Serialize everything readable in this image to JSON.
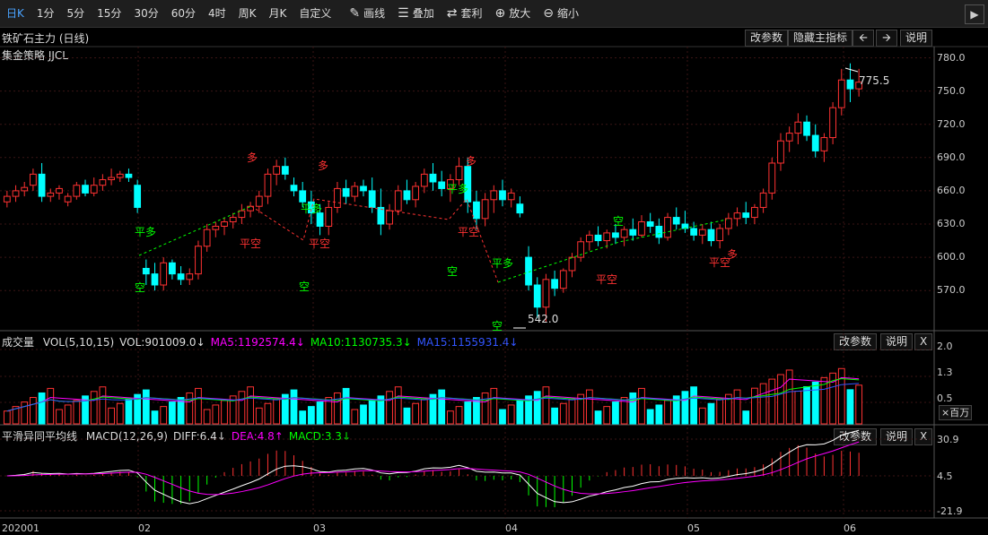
{
  "toolbar": {
    "periods": [
      "日K",
      "1分",
      "5分",
      "15分",
      "30分",
      "60分",
      "4时",
      "周K",
      "月K",
      "自定义"
    ],
    "tools": [
      {
        "label": "画线",
        "icon": "pencil-icon"
      },
      {
        "label": "叠加",
        "icon": "layers-icon"
      },
      {
        "label": "套利",
        "icon": "arbitrage-icon"
      },
      {
        "label": "放大",
        "icon": "zoom-in-icon"
      },
      {
        "label": "缩小",
        "icon": "zoom-out-icon"
      }
    ],
    "expand_icon": "chevron-right-icon"
  },
  "main": {
    "title": "铁矿石主力 (日线)",
    "indicator": "集金策略 JJCL",
    "buttons": {
      "params": "改参数",
      "hide": "隐藏主指标",
      "explain": "说明"
    },
    "price_ticks": [
      "780.0",
      "750.0",
      "720.0",
      "690.0",
      "660.0",
      "630.0",
      "600.0",
      "570.0"
    ],
    "high_label": "775.5",
    "low_label": "542.0"
  },
  "volume": {
    "title": "成交量",
    "legend": [
      {
        "text": "VOL(5,10,15)",
        "color": "#dddddd"
      },
      {
        "text": "VOL:901009.0↓",
        "color": "#dddddd"
      },
      {
        "text": "MA5:1192574.4↓",
        "color": "#ff00ff"
      },
      {
        "text": "MA10:1130735.3↓",
        "color": "#00ff00"
      },
      {
        "text": "MA15:1155931.4↓",
        "color": "#3355ff"
      }
    ],
    "buttons": {
      "params": "改参数",
      "explain": "说明",
      "close": "X"
    },
    "ticks": [
      "2.0",
      "1.3",
      "0.5"
    ],
    "unit": "×百万"
  },
  "macd": {
    "title": "平滑异同平均线",
    "legend": [
      {
        "text": "MACD(12,26,9)",
        "color": "#dddddd"
      },
      {
        "text": "DIFF:6.4↓",
        "color": "#dddddd"
      },
      {
        "text": "DEA:4.8↑",
        "color": "#ff00ff"
      },
      {
        "text": "MACD:3.3↓",
        "color": "#00ff00"
      }
    ],
    "buttons": {
      "params": "改参数",
      "explain": "说明",
      "close": "X"
    },
    "ticks": [
      "30.9",
      "4.5",
      "-21.9"
    ]
  },
  "dates": [
    "202001",
    "02",
    "03",
    "04",
    "05",
    "06"
  ],
  "signal_texts": {
    "ping_duo": "平多",
    "ping_kong": "平空",
    "duo": "多",
    "kong": "空"
  },
  "chart_data": {
    "type": "candlestick",
    "title": "铁矿石主力 (日线)",
    "ylim": [
      542,
      780
    ],
    "y_ticks": [
      570,
      600,
      630,
      660,
      690,
      720,
      750,
      780
    ],
    "candles": [
      [
        650,
        660,
        645,
        655
      ],
      [
        655,
        665,
        650,
        660
      ],
      [
        660,
        668,
        655,
        663
      ],
      [
        665,
        680,
        660,
        675
      ],
      [
        675,
        685,
        650,
        655
      ],
      [
        655,
        662,
        650,
        658
      ],
      [
        658,
        665,
        652,
        662
      ],
      [
        650,
        658,
        646,
        655
      ],
      [
        655,
        668,
        652,
        665
      ],
      [
        665,
        670,
        655,
        658
      ],
      [
        658,
        672,
        655,
        665
      ],
      [
        665,
        675,
        660,
        670
      ],
      [
        670,
        680,
        665,
        672
      ],
      [
        672,
        678,
        668,
        675
      ],
      [
        675,
        680,
        668,
        672
      ],
      [
        665,
        670,
        640,
        645
      ],
      [
        590,
        598,
        575,
        585
      ],
      [
        585,
        595,
        570,
        575
      ],
      [
        575,
        600,
        570,
        595
      ],
      [
        595,
        598,
        580,
        585
      ],
      [
        585,
        592,
        575,
        580
      ],
      [
        580,
        590,
        575,
        585
      ],
      [
        585,
        615,
        580,
        610
      ],
      [
        610,
        630,
        605,
        625
      ],
      [
        625,
        632,
        618,
        628
      ],
      [
        628,
        636,
        620,
        632
      ],
      [
        632,
        640,
        626,
        636
      ],
      [
        636,
        648,
        630,
        642
      ],
      [
        642,
        650,
        636,
        646
      ],
      [
        646,
        660,
        640,
        655
      ],
      [
        655,
        680,
        648,
        675
      ],
      [
        675,
        688,
        665,
        682
      ],
      [
        682,
        690,
        670,
        675
      ],
      [
        665,
        672,
        655,
        660
      ],
      [
        660,
        668,
        645,
        650
      ],
      [
        650,
        660,
        630,
        640
      ],
      [
        640,
        648,
        620,
        628
      ],
      [
        628,
        650,
        620,
        645
      ],
      [
        645,
        668,
        640,
        662
      ],
      [
        662,
        670,
        648,
        655
      ],
      [
        655,
        668,
        650,
        664
      ],
      [
        664,
        670,
        655,
        660
      ],
      [
        660,
        672,
        640,
        645
      ],
      [
        645,
        662,
        620,
        630
      ],
      [
        630,
        648,
        625,
        642
      ],
      [
        642,
        665,
        638,
        660
      ],
      [
        660,
        670,
        648,
        652
      ],
      [
        652,
        668,
        645,
        664
      ],
      [
        664,
        680,
        658,
        675
      ],
      [
        675,
        685,
        660,
        668
      ],
      [
        668,
        678,
        655,
        662
      ],
      [
        662,
        675,
        650,
        670
      ],
      [
        670,
        690,
        665,
        682
      ],
      [
        682,
        690,
        640,
        650
      ],
      [
        650,
        660,
        625,
        635
      ],
      [
        635,
        658,
        628,
        652
      ],
      [
        652,
        665,
        640,
        660
      ],
      [
        660,
        670,
        646,
        652
      ],
      [
        652,
        662,
        645,
        658
      ],
      [
        648,
        655,
        636,
        640
      ],
      [
        600,
        610,
        570,
        575
      ],
      [
        575,
        582,
        545,
        555
      ],
      [
        555,
        585,
        542,
        580
      ],
      [
        580,
        588,
        565,
        572
      ],
      [
        572,
        590,
        568,
        588
      ],
      [
        588,
        604,
        582,
        600
      ],
      [
        600,
        618,
        596,
        614
      ],
      [
        614,
        624,
        606,
        620
      ],
      [
        620,
        628,
        610,
        615
      ],
      [
        615,
        625,
        608,
        622
      ],
      [
        622,
        630,
        612,
        618
      ],
      [
        618,
        628,
        610,
        625
      ],
      [
        625,
        635,
        615,
        620
      ],
      [
        620,
        638,
        618,
        632
      ],
      [
        632,
        640,
        622,
        628
      ],
      [
        628,
        635,
        612,
        618
      ],
      [
        618,
        640,
        615,
        636
      ],
      [
        636,
        645,
        625,
        630
      ],
      [
        630,
        642,
        622,
        626
      ],
      [
        626,
        632,
        615,
        620
      ],
      [
        620,
        630,
        612,
        625
      ],
      [
        625,
        632,
        610,
        615
      ],
      [
        615,
        630,
        608,
        626
      ],
      [
        626,
        640,
        620,
        635
      ],
      [
        635,
        645,
        628,
        640
      ],
      [
        640,
        650,
        630,
        636
      ],
      [
        636,
        648,
        630,
        645
      ],
      [
        645,
        662,
        640,
        658
      ],
      [
        658,
        690,
        652,
        685
      ],
      [
        685,
        712,
        678,
        705
      ],
      [
        705,
        718,
        695,
        712
      ],
      [
        712,
        730,
        702,
        722
      ],
      [
        722,
        728,
        705,
        710
      ],
      [
        710,
        720,
        690,
        696
      ],
      [
        696,
        712,
        686,
        708
      ],
      [
        708,
        740,
        702,
        735
      ],
      [
        735,
        770,
        728,
        760
      ],
      [
        760,
        775,
        740,
        752
      ],
      [
        752,
        770,
        745,
        758
      ]
    ]
  }
}
